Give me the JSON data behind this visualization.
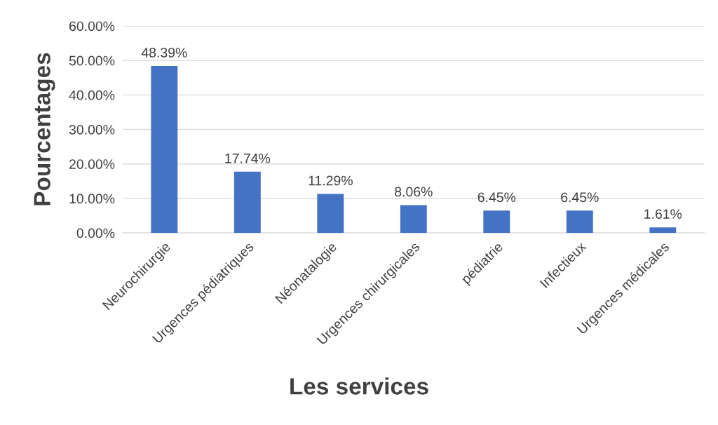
{
  "chart_data": {
    "type": "bar",
    "xlabel": "Les services",
    "ylabel": "Pourcentages",
    "categories": [
      "Neurochirurgie",
      "Urgences pédiatriques",
      "Néonatalogie",
      "Urgences chirurgicales",
      "pédiatrie",
      "Infectieux",
      "Urgences médicales"
    ],
    "values": [
      48.39,
      17.74,
      11.29,
      8.06,
      6.45,
      6.45,
      1.61
    ],
    "value_labels": [
      "48.39%",
      "17.74%",
      "11.29%",
      "8.06%",
      "6.45%",
      "6.45%",
      "1.61%"
    ],
    "color": "#4472c4",
    "ylim": [
      0,
      60
    ],
    "yticks": [
      {
        "value": 0,
        "label": "0.00%"
      },
      {
        "value": 10,
        "label": "10.00%"
      },
      {
        "value": 20,
        "label": "20.00%"
      },
      {
        "value": 30,
        "label": "30.00%"
      },
      {
        "value": 40,
        "label": "40.00%"
      },
      {
        "value": 50,
        "label": "50.00%"
      },
      {
        "value": 60,
        "label": "60.00%"
      }
    ],
    "grid": "y",
    "legend": false
  }
}
